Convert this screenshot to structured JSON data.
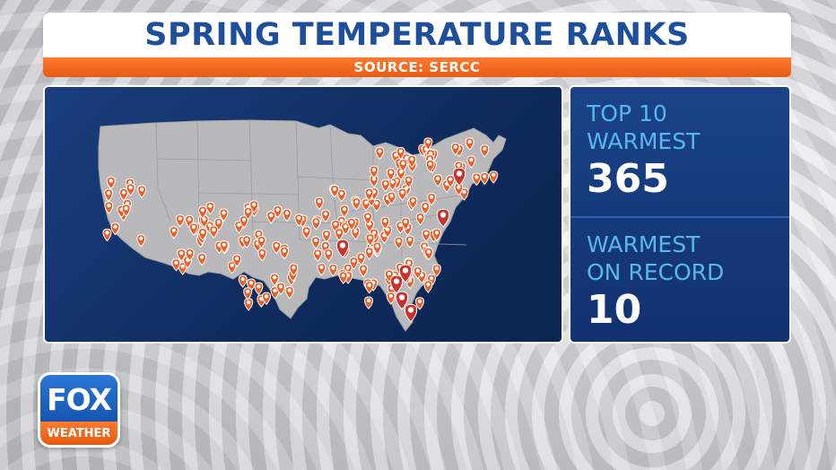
{
  "header": {
    "title": "SPRING TEMPERATURE RANKS",
    "source": "SOURCE: SERCC"
  },
  "stats": [
    {
      "label": "TOP 10\nWARMEST",
      "value": "365"
    },
    {
      "label": "WARMEST\nON RECORD",
      "value": "10"
    }
  ],
  "logo": {
    "top": "FOX",
    "bottom": "WEATHER"
  },
  "colors": {
    "title": "#1d4f9c",
    "accent_orange": "#e8602a",
    "record_marker": "#c8332f",
    "panel_blue": "#123170",
    "stat_label": "#58b7ec"
  },
  "map": {
    "region": "contiguous-united-states",
    "marker_icon": "map-pin-icon"
  }
}
